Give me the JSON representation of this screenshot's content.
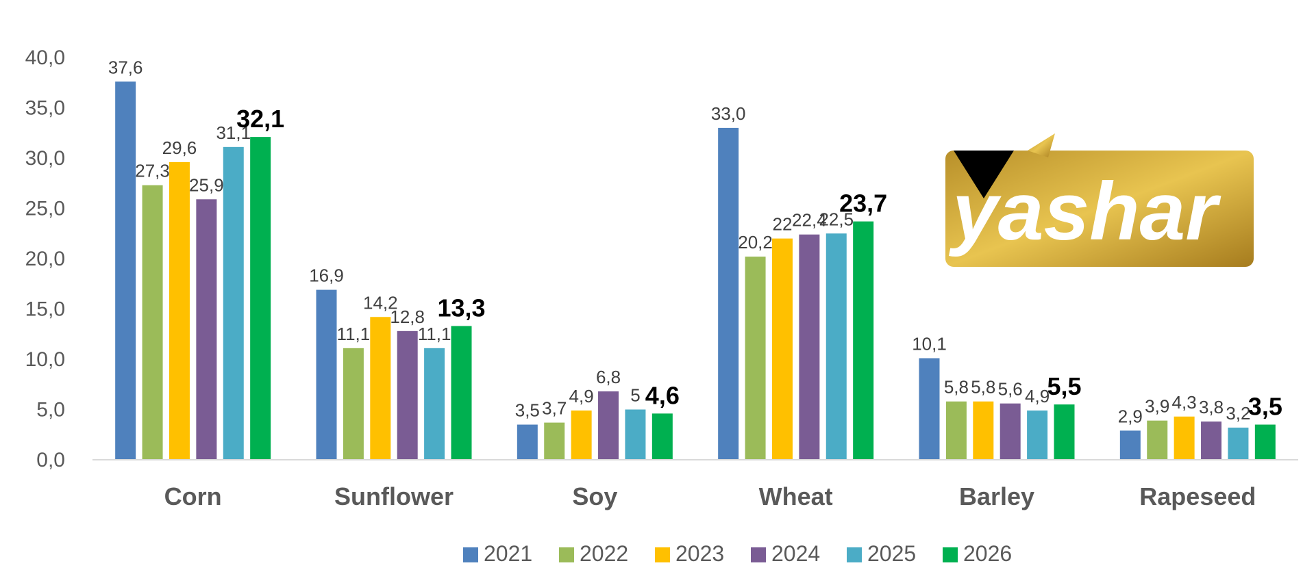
{
  "chart_data": {
    "type": "bar",
    "title": "",
    "xlabel": "",
    "ylabel": "",
    "ylim": [
      0,
      40
    ],
    "yticks": [
      "0,0",
      "5,0",
      "10,0",
      "15,0",
      "20,0",
      "25,0",
      "30,0",
      "35,0",
      "40,0"
    ],
    "grid": false,
    "legend_position": "bottom",
    "categories": [
      "Corn",
      "Sunflower",
      "Soy",
      "Wheat",
      "Barley",
      "Rapeseed"
    ],
    "series": [
      {
        "name": "2021",
        "color": "#4F81BD",
        "values": [
          37.6,
          16.9,
          3.5,
          33.0,
          10.1,
          2.9
        ],
        "labels": [
          "37,6",
          "16,9",
          "3,5",
          "33,0",
          "10,1",
          "2,9"
        ]
      },
      {
        "name": "2022",
        "color": "#9BBB59",
        "values": [
          27.3,
          11.1,
          3.7,
          20.2,
          5.8,
          3.9
        ],
        "labels": [
          "27,3",
          "11,1",
          "3,7",
          "20,2",
          "5,8",
          "3,9"
        ]
      },
      {
        "name": "2023",
        "color": "#FFC000",
        "values": [
          29.6,
          14.2,
          4.9,
          22,
          5.8,
          4.3
        ],
        "labels": [
          "29,6",
          "14,2",
          "4,9",
          "22",
          "5,8",
          "4,3"
        ]
      },
      {
        "name": "2024",
        "color": "#7A5C94",
        "values": [
          25.9,
          12.8,
          6.8,
          22.4,
          5.6,
          3.8
        ],
        "labels": [
          "25,9",
          "12,8",
          "6,8",
          "22,4",
          "5,6",
          "3,8"
        ]
      },
      {
        "name": "2025",
        "color": "#4BACC6",
        "values": [
          31.1,
          11.1,
          5,
          22.5,
          4.9,
          3.2
        ],
        "labels": [
          "31,1",
          "11,1",
          "5",
          "22,5",
          "4,9",
          "3,2"
        ]
      },
      {
        "name": "2026",
        "color": "#00B050",
        "values": [
          32.1,
          13.3,
          4.6,
          23.7,
          5.5,
          3.5
        ],
        "labels": [
          "32,1",
          "13,3",
          "4,6",
          "23,7",
          "5,5",
          "3,5"
        ],
        "bold_labels": true
      }
    ]
  },
  "logo": {
    "text": "yashar",
    "colors": [
      "#B8902A",
      "#E8C450",
      "#A67C1E"
    ]
  }
}
